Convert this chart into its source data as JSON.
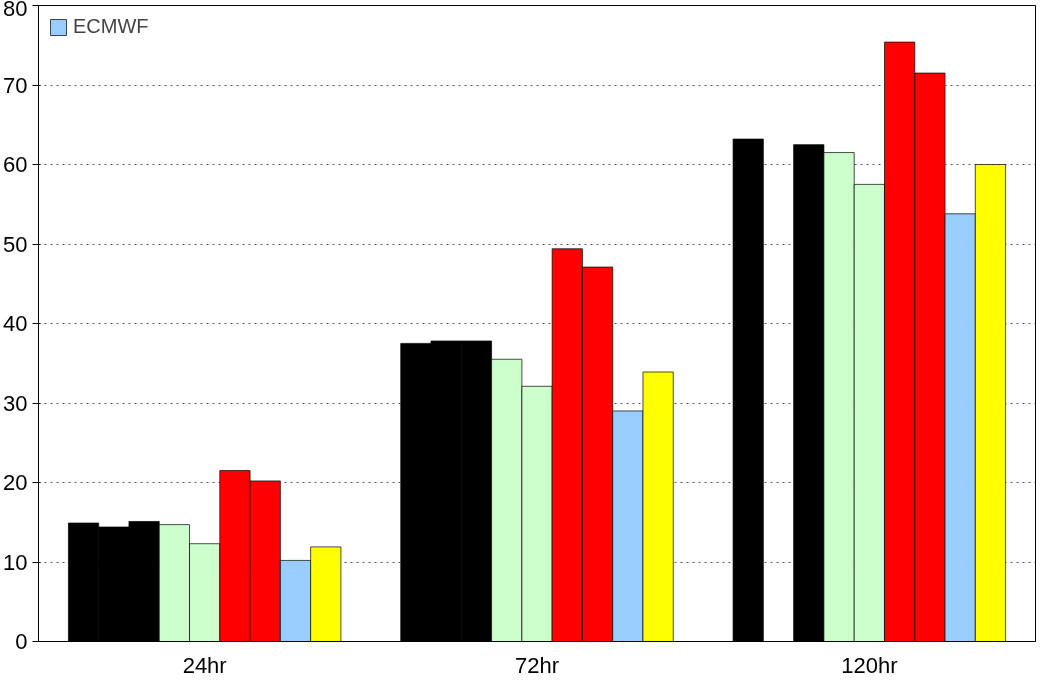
{
  "chart_data": {
    "type": "bar",
    "categories": [
      "24hr",
      "72hr",
      "120hr"
    ],
    "series": [
      {
        "color": "#000000",
        "values": [
          14.9,
          37.5,
          63.2
        ]
      },
      {
        "color": "#000000",
        "values": [
          14.4,
          37.8,
          null
        ]
      },
      {
        "color": "#000000",
        "values": [
          15.1,
          37.8,
          62.5
        ]
      },
      {
        "color": "#ccffcc",
        "values": [
          14.7,
          35.5,
          61.5
        ]
      },
      {
        "color": "#ccffcc",
        "values": [
          12.3,
          32.1,
          57.5
        ]
      },
      {
        "color": "#ff0000",
        "values": [
          21.5,
          49.4,
          75.4
        ]
      },
      {
        "color": "#ff0000",
        "values": [
          20.2,
          47.1,
          71.5
        ]
      },
      {
        "name": "ECMWF",
        "color": "#99ccff",
        "values": [
          10.2,
          29.0,
          53.8
        ]
      },
      {
        "color": "#ffff00",
        "values": [
          11.9,
          33.9,
          60.0
        ]
      }
    ],
    "ylim": [
      0,
      80
    ],
    "yticks": [
      0,
      10,
      20,
      30,
      40,
      50,
      60,
      70,
      80
    ],
    "grid": "y",
    "legend": "top left"
  }
}
